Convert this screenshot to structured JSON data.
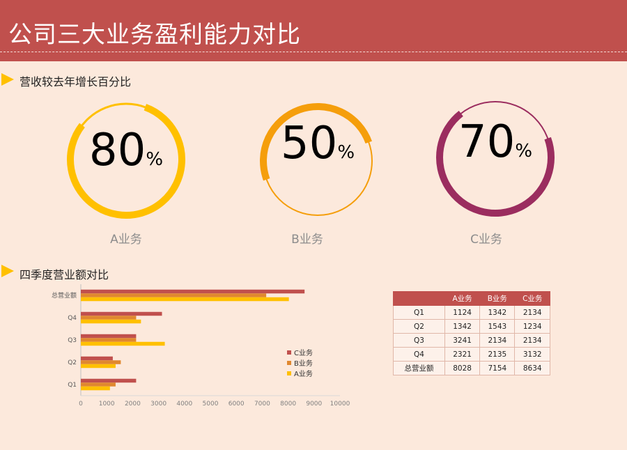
{
  "header": {
    "title": "公司三大业务盈利能力对比"
  },
  "section1": {
    "title": "营收较去年增长百分比"
  },
  "section2": {
    "title": "四季度营业额对比"
  },
  "rings": [
    {
      "value": 80,
      "unit": "%",
      "label": "A业务",
      "color": "#ffc000"
    },
    {
      "value": 50,
      "unit": "%",
      "label": "B业务",
      "color": "#f59e0b"
    },
    {
      "value": 70,
      "unit": "%",
      "label": "C业务",
      "color": "#9b2d5f"
    }
  ],
  "colors": {
    "header": "#c0504d",
    "background": "#fce9dc",
    "marker": "#ffc000",
    "A": "#ffc000",
    "B": "#e0882f",
    "C": "#c0504d"
  },
  "chart_data": {
    "type": "bar",
    "orientation": "horizontal",
    "categories": [
      "Q1",
      "Q2",
      "Q3",
      "Q4",
      "总营业额"
    ],
    "series": [
      {
        "name": "C业务",
        "values": [
          2134,
          1234,
          2134,
          3132,
          8634
        ]
      },
      {
        "name": "B业务",
        "values": [
          1342,
          1543,
          2134,
          2135,
          7154
        ]
      },
      {
        "name": "A业务",
        "values": [
          1124,
          1342,
          3241,
          2321,
          8028
        ]
      }
    ],
    "xlim": [
      0,
      10000
    ],
    "xticks": [
      "0",
      "1000",
      "2000",
      "3000",
      "4000",
      "5000",
      "6000",
      "7000",
      "8000",
      "9000",
      "10000"
    ],
    "legend": "right"
  },
  "table": {
    "headers": [
      "",
      "A业务",
      "B业务",
      "C业务"
    ],
    "rows": [
      [
        "Q1",
        "1124",
        "1342",
        "2134"
      ],
      [
        "Q2",
        "1342",
        "1543",
        "1234"
      ],
      [
        "Q3",
        "3241",
        "2134",
        "2134"
      ],
      [
        "Q4",
        "2321",
        "2135",
        "3132"
      ],
      [
        "总营业额",
        "8028",
        "7154",
        "8634"
      ]
    ]
  }
}
